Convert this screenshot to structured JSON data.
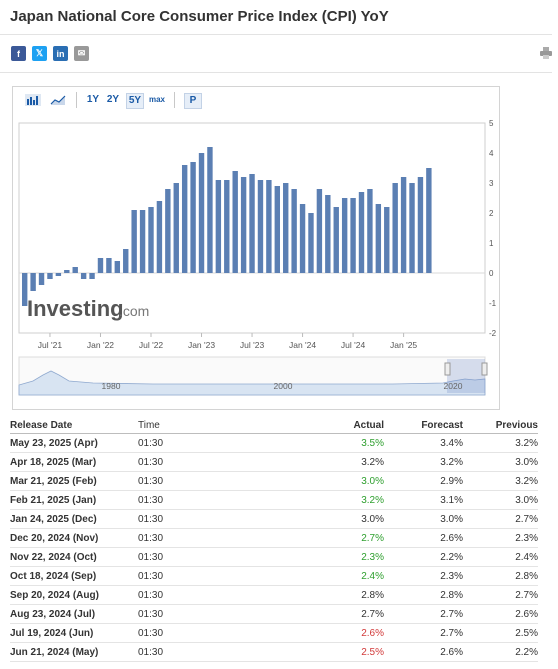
{
  "page": {
    "title": "Japan National Core Consumer Price Index (CPI) YoY"
  },
  "share": [
    {
      "name": "facebook",
      "glyph": "f",
      "color": "#3b5998"
    },
    {
      "name": "twitter",
      "glyph": "𝕏",
      "color": "#1da1f2"
    },
    {
      "name": "linkedin",
      "glyph": "in",
      "color": "#2a6eb3"
    },
    {
      "name": "email",
      "glyph": "✉",
      "color": "#999999"
    }
  ],
  "toolbar": {
    "range_1y": "1Y",
    "range_2y": "2Y",
    "range_5y": "5Y",
    "range_max": "max",
    "popout": "P"
  },
  "chart_data": {
    "type": "bar",
    "categories": [
      "Apr 2021",
      "May 2021",
      "Jun 2021",
      "Jul 2021",
      "Aug 2021",
      "Sep 2021",
      "Oct 2021",
      "Nov 2021",
      "Dec 2021",
      "Jan 2022",
      "Feb 2022",
      "Mar 2022",
      "Apr 2022",
      "May 2022",
      "Jun 2022",
      "Jul 2022",
      "Aug 2022",
      "Sep 2022",
      "Oct 2022",
      "Nov 2022",
      "Dec 2022",
      "Jan 2023",
      "Feb 2023",
      "Mar 2023",
      "Apr 2023",
      "May 2023",
      "Jun 2023",
      "Jul 2023",
      "Aug 2023",
      "Sep 2023",
      "Oct 2023",
      "Nov 2023",
      "Dec 2023",
      "Jan 2024",
      "Feb 2024",
      "Mar 2024",
      "Apr 2024",
      "May 2024",
      "Jun 2024",
      "Jul 2024",
      "Aug 2024",
      "Sep 2024",
      "Oct 2024",
      "Nov 2024",
      "Dec 2024",
      "Jan 2025",
      "Feb 2025",
      "Mar 2025",
      "Apr 2025"
    ],
    "values": [
      -1.1,
      -0.6,
      -0.4,
      -0.2,
      -0.1,
      0.1,
      0.2,
      -0.2,
      -0.2,
      0.5,
      0.5,
      0.4,
      0.8,
      2.1,
      2.1,
      2.2,
      2.4,
      2.8,
      3.0,
      3.6,
      3.7,
      4.0,
      4.2,
      3.1,
      3.1,
      3.4,
      3.2,
      3.3,
      3.1,
      3.1,
      2.9,
      3.0,
      2.8,
      2.3,
      2.0,
      2.8,
      2.6,
      2.2,
      2.5,
      2.5,
      2.7,
      2.8,
      2.3,
      2.2,
      3.0,
      3.2,
      3.0,
      3.2,
      3.5
    ],
    "xticks": [
      "Jan '21",
      "Jul '21",
      "Jan '22",
      "Jul '22",
      "Jan '23",
      "Jul '23",
      "Jan '24",
      "Jul '24",
      "Jan '25"
    ],
    "yticks": [
      "5",
      "4",
      "3",
      "2",
      "1",
      "0",
      "-1",
      "-2"
    ],
    "ylim": [
      -2,
      5
    ],
    "navigator_labels": [
      "1980",
      "2000",
      "2020"
    ],
    "watermark": "Investing",
    "watermark_suffix": ".com",
    "colors": {
      "bar": "#5b7fb3",
      "axis": "#cfcfcf"
    }
  },
  "table": {
    "headers": {
      "date": "Release Date",
      "time": "Time",
      "actual": "Actual",
      "forecast": "Forecast",
      "previous": "Previous"
    },
    "rows": [
      {
        "date": "May 23, 2025 (Apr)",
        "time": "01:30",
        "actual": "3.5%",
        "actual_color": "green",
        "forecast": "3.4%",
        "previous": "3.2%"
      },
      {
        "date": "Apr 18, 2025 (Mar)",
        "time": "01:30",
        "actual": "3.2%",
        "actual_color": "black",
        "forecast": "3.2%",
        "previous": "3.0%"
      },
      {
        "date": "Mar 21, 2025 (Feb)",
        "time": "01:30",
        "actual": "3.0%",
        "actual_color": "green",
        "forecast": "2.9%",
        "previous": "3.2%"
      },
      {
        "date": "Feb 21, 2025 (Jan)",
        "time": "01:30",
        "actual": "3.2%",
        "actual_color": "green",
        "forecast": "3.1%",
        "previous": "3.0%"
      },
      {
        "date": "Jan 24, 2025 (Dec)",
        "time": "01:30",
        "actual": "3.0%",
        "actual_color": "black",
        "forecast": "3.0%",
        "previous": "2.7%"
      },
      {
        "date": "Dec 20, 2024 (Nov)",
        "time": "01:30",
        "actual": "2.7%",
        "actual_color": "green",
        "forecast": "2.6%",
        "previous": "2.3%"
      },
      {
        "date": "Nov 22, 2024 (Oct)",
        "time": "01:30",
        "actual": "2.3%",
        "actual_color": "green",
        "forecast": "2.2%",
        "previous": "2.4%"
      },
      {
        "date": "Oct 18, 2024 (Sep)",
        "time": "01:30",
        "actual": "2.4%",
        "actual_color": "green",
        "forecast": "2.3%",
        "previous": "2.8%"
      },
      {
        "date": "Sep 20, 2024 (Aug)",
        "time": "01:30",
        "actual": "2.8%",
        "actual_color": "black",
        "forecast": "2.8%",
        "previous": "2.7%"
      },
      {
        "date": "Aug 23, 2024 (Jul)",
        "time": "01:30",
        "actual": "2.7%",
        "actual_color": "black",
        "forecast": "2.7%",
        "previous": "2.6%"
      },
      {
        "date": "Jul 19, 2024 (Jun)",
        "time": "01:30",
        "actual": "2.6%",
        "actual_color": "red",
        "forecast": "2.7%",
        "previous": "2.5%"
      },
      {
        "date": "Jun 21, 2024 (May)",
        "time": "01:30",
        "actual": "2.5%",
        "actual_color": "red",
        "forecast": "2.6%",
        "previous": "2.2%"
      }
    ]
  }
}
